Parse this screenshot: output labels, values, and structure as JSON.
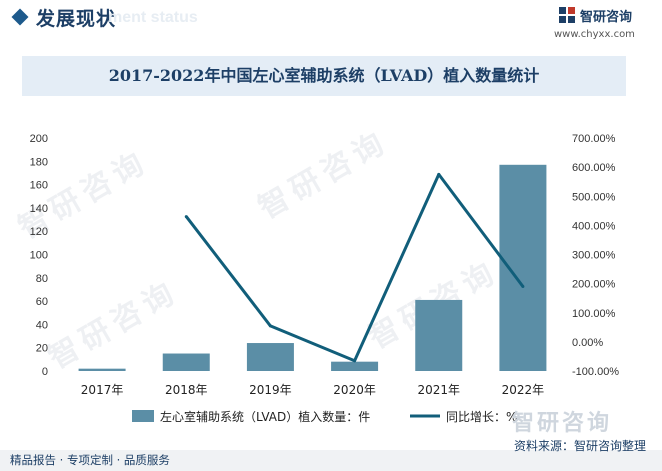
{
  "header": {
    "section_title": "发展现状",
    "section_sub": "ment status",
    "brand_name": "智研咨询",
    "brand_url": "www.chyxx.com"
  },
  "chart_data": {
    "type": "bar+line",
    "title": "2017-2022年中国左心室辅助系统（LVAD）植入数量统计",
    "categories": [
      "2017年",
      "2018年",
      "2019年",
      "2020年",
      "2021年",
      "2022年"
    ],
    "series": [
      {
        "name": "左心室辅助系统（LVAD）植入数量：件",
        "type": "bar",
        "axis": "left",
        "values": [
          2,
          15,
          24,
          8,
          61,
          177
        ],
        "color": "#5b8ea6"
      },
      {
        "name": "同比增长：%",
        "type": "line",
        "axis": "right",
        "values": [
          null,
          430,
          55,
          -65,
          575,
          190
        ],
        "color": "#115e7a"
      }
    ],
    "y_left": {
      "min": 0,
      "max": 200,
      "ticks": [
        "0",
        "20",
        "40",
        "60",
        "80",
        "100",
        "120",
        "140",
        "160",
        "180",
        "200"
      ]
    },
    "y_right": {
      "min": -100,
      "max": 700,
      "ticks": [
        "-100.00%",
        "0.00%",
        "100.00%",
        "200.00%",
        "300.00%",
        "400.00%",
        "500.00%",
        "600.00%",
        "700.00%"
      ]
    },
    "grid": false,
    "legend_position": "bottom"
  },
  "footer": {
    "left_text": "精品报告 · 专项定制 · 品质服务",
    "source_text": "资料来源：智研咨询整理",
    "watermark_brand": "智研咨询"
  },
  "watermarks": [
    "智研咨询",
    "智研咨询",
    "智研咨询",
    "智研咨询"
  ]
}
